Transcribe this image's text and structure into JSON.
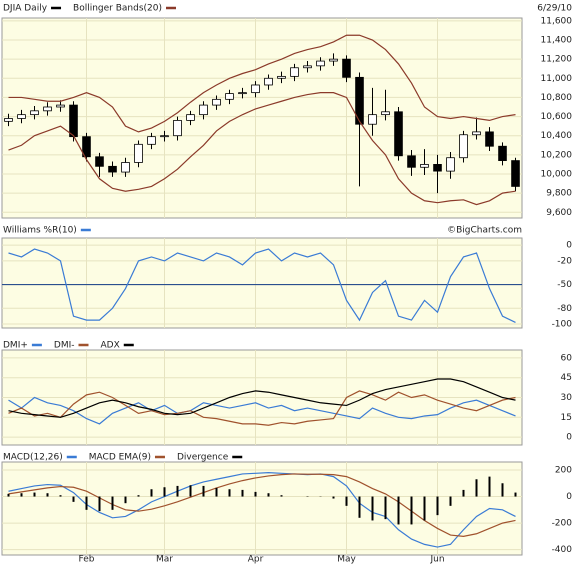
{
  "chart_data": [
    {
      "type": "candlestick",
      "date_label": "6/29/10",
      "series": [
        {
          "name": "DJIA Daily",
          "color": "#000000",
          "open": [
            10550,
            10580,
            10620,
            10660,
            10700,
            10720,
            10390,
            10180,
            10080,
            10020,
            10120,
            10310,
            10390,
            10400,
            10560,
            10620,
            10720,
            10780,
            10840,
            10850,
            10930,
            11000,
            11020,
            11110,
            11130,
            11180,
            11200,
            11010,
            10520,
            10620,
            10650,
            10190,
            10070,
            10100,
            10030,
            10170,
            10410,
            10440,
            10290,
            10140
          ],
          "high": [
            10630,
            10670,
            10710,
            10750,
            10770,
            10760,
            10430,
            10220,
            10130,
            10170,
            10350,
            10430,
            10450,
            10600,
            10660,
            10760,
            10820,
            10880,
            10900,
            10970,
            11040,
            11070,
            11150,
            11180,
            11220,
            11260,
            11240,
            11060,
            10900,
            10880,
            10700,
            10250,
            10260,
            10200,
            10230,
            10450,
            10590,
            10490,
            10330,
            10170
          ],
          "low": [
            10500,
            10530,
            10570,
            10610,
            10650,
            10340,
            10130,
            9970,
            9970,
            9970,
            10070,
            10260,
            10340,
            10350,
            10510,
            10570,
            10670,
            10730,
            10790,
            10800,
            10880,
            10950,
            10970,
            11060,
            11080,
            11130,
            10960,
            9870,
            10400,
            10560,
            10140,
            9980,
            9990,
            9800,
            9950,
            10120,
            10360,
            10240,
            10090,
            9820
          ],
          "close": [
            10580,
            10620,
            10660,
            10700,
            10720,
            10390,
            10180,
            10080,
            10020,
            10120,
            10310,
            10390,
            10400,
            10560,
            10620,
            10720,
            10780,
            10840,
            10850,
            10930,
            11000,
            11020,
            11110,
            11130,
            11180,
            11200,
            11010,
            10520,
            10620,
            10650,
            10190,
            10070,
            10100,
            10030,
            10170,
            10410,
            10440,
            10290,
            10140,
            9870
          ]
        },
        {
          "name": "Bollinger Bands(20)",
          "color": "#8b3a2a",
          "upper": [
            10800,
            10800,
            10780,
            10760,
            10760,
            10800,
            10850,
            10800,
            10700,
            10500,
            10440,
            10480,
            10550,
            10640,
            10750,
            10850,
            10930,
            11000,
            11050,
            11090,
            11150,
            11200,
            11260,
            11300,
            11330,
            11380,
            11450,
            11450,
            11400,
            11300,
            11150,
            10950,
            10700,
            10600,
            10580,
            10600,
            10580,
            10560,
            10600,
            10620
          ],
          "lower": [
            10250,
            10300,
            10400,
            10450,
            10500,
            10400,
            10150,
            9950,
            9850,
            9820,
            9840,
            9870,
            9950,
            10050,
            10180,
            10300,
            10450,
            10550,
            10620,
            10680,
            10720,
            10760,
            10800,
            10830,
            10850,
            10850,
            10800,
            10550,
            10350,
            10200,
            9950,
            9800,
            9720,
            9700,
            9720,
            9730,
            9680,
            9720,
            9800,
            9820
          ]
        }
      ],
      "ylim": [
        9540,
        11630
      ],
      "yticks": [
        {
          "value": 11600,
          "label": "11,600"
        },
        {
          "value": 11400,
          "label": "11,400"
        },
        {
          "value": 11200,
          "label": "11,200"
        },
        {
          "value": 11000,
          "label": "11,000"
        },
        {
          "value": 10800,
          "label": "10,800"
        },
        {
          "value": 10600,
          "label": "10,600"
        },
        {
          "value": 10400,
          "label": "10,400"
        },
        {
          "value": 10200,
          "label": "10,200"
        },
        {
          "value": 10000,
          "label": "10,000"
        },
        {
          "value": 9800,
          "label": "9,800"
        },
        {
          "value": 9600,
          "label": "9,600"
        }
      ],
      "grid": true
    },
    {
      "type": "line",
      "credit": "©BigCharts.com",
      "series": [
        {
          "name": "Williams %R(10)",
          "color": "#3a7bd5",
          "values": [
            -10,
            -15,
            -5,
            -10,
            -20,
            -90,
            -95,
            -95,
            -80,
            -55,
            -20,
            -15,
            -20,
            -10,
            -15,
            -20,
            -10,
            -15,
            -25,
            -10,
            -5,
            -20,
            -10,
            -15,
            -10,
            -25,
            -70,
            -95,
            -60,
            -45,
            -90,
            -95,
            -70,
            -85,
            -40,
            -15,
            -10,
            -55,
            -90,
            -98
          ]
        }
      ],
      "ylim": [
        -105,
        9
      ],
      "yticks": [
        0,
        -20,
        -50,
        -80,
        -100
      ],
      "hline": -50,
      "grid": true
    },
    {
      "type": "line",
      "series": [
        {
          "name": "DMI+",
          "color": "#3a7bd5",
          "values": [
            28,
            22,
            30,
            26,
            24,
            20,
            14,
            10,
            18,
            22,
            26,
            20,
            24,
            18,
            20,
            26,
            24,
            22,
            24,
            26,
            22,
            24,
            20,
            22,
            20,
            18,
            16,
            14,
            22,
            18,
            15,
            14,
            16,
            17,
            22,
            26,
            28,
            24,
            20,
            16
          ]
        },
        {
          "name": "DMI-",
          "color": "#a0522d",
          "values": [
            18,
            22,
            16,
            18,
            15,
            25,
            32,
            34,
            30,
            24,
            18,
            20,
            17,
            18,
            20,
            15,
            14,
            12,
            10,
            10,
            9,
            11,
            10,
            12,
            13,
            14,
            30,
            35,
            32,
            28,
            34,
            30,
            32,
            28,
            25,
            22,
            20,
            24,
            28,
            30
          ]
        },
        {
          "name": "ADX",
          "color": "#000000",
          "values": [
            20,
            18,
            17,
            16,
            15,
            18,
            22,
            26,
            28,
            26,
            23,
            21,
            18,
            17,
            18,
            22,
            26,
            30,
            33,
            35,
            34,
            32,
            30,
            28,
            26,
            25,
            24,
            28,
            33,
            36,
            38,
            40,
            42,
            44,
            44,
            42,
            38,
            34,
            30,
            28
          ]
        }
      ],
      "ylim": [
        -6,
        66
      ],
      "yticks": [
        60,
        45,
        30,
        15,
        0
      ],
      "grid": true
    },
    {
      "type": "line",
      "categories": [
        null,
        null,
        null,
        null,
        null,
        null,
        "Feb",
        null,
        null,
        null,
        null,
        null,
        "Mar",
        null,
        null,
        null,
        null,
        null,
        null,
        "Apr",
        null,
        null,
        null,
        null,
        null,
        null,
        "May",
        null,
        null,
        null,
        null,
        null,
        null,
        "Jun",
        null,
        null,
        null,
        null,
        null,
        null
      ],
      "series": [
        {
          "name": "MACD(12,26)",
          "color": "#3a7bd5",
          "values": [
            40,
            60,
            80,
            90,
            85,
            30,
            -60,
            -120,
            -160,
            -150,
            -100,
            -40,
            0,
            40,
            80,
            110,
            130,
            150,
            170,
            175,
            180,
            175,
            170,
            165,
            170,
            150,
            80,
            -50,
            -120,
            -150,
            -250,
            -320,
            -360,
            -380,
            -360,
            -250,
            -150,
            -90,
            -100,
            -150
          ]
        },
        {
          "name": "MACD EMA(9)",
          "color": "#a0522d",
          "values": [
            20,
            35,
            50,
            65,
            75,
            70,
            40,
            -10,
            -60,
            -100,
            -110,
            -95,
            -70,
            -40,
            -5,
            30,
            65,
            95,
            120,
            140,
            155,
            165,
            170,
            168,
            168,
            165,
            150,
            110,
            60,
            20,
            -40,
            -110,
            -180,
            -240,
            -290,
            -300,
            -280,
            -240,
            -200,
            -180
          ]
        },
        {
          "name": "Divergence",
          "color": "#000000",
          "style": "bar",
          "values": [
            20,
            25,
            30,
            25,
            10,
            -40,
            -100,
            -110,
            -100,
            -50,
            10,
            55,
            70,
            80,
            85,
            80,
            65,
            55,
            50,
            35,
            25,
            10,
            0,
            -3,
            2,
            -15,
            -70,
            -160,
            -180,
            -170,
            -210,
            -210,
            -180,
            -140,
            -70,
            50,
            130,
            150,
            100,
            30
          ]
        }
      ],
      "ylim": [
        -440,
        260
      ],
      "yticks": [
        200,
        0,
        -200,
        -400
      ],
      "grid": true
    }
  ]
}
